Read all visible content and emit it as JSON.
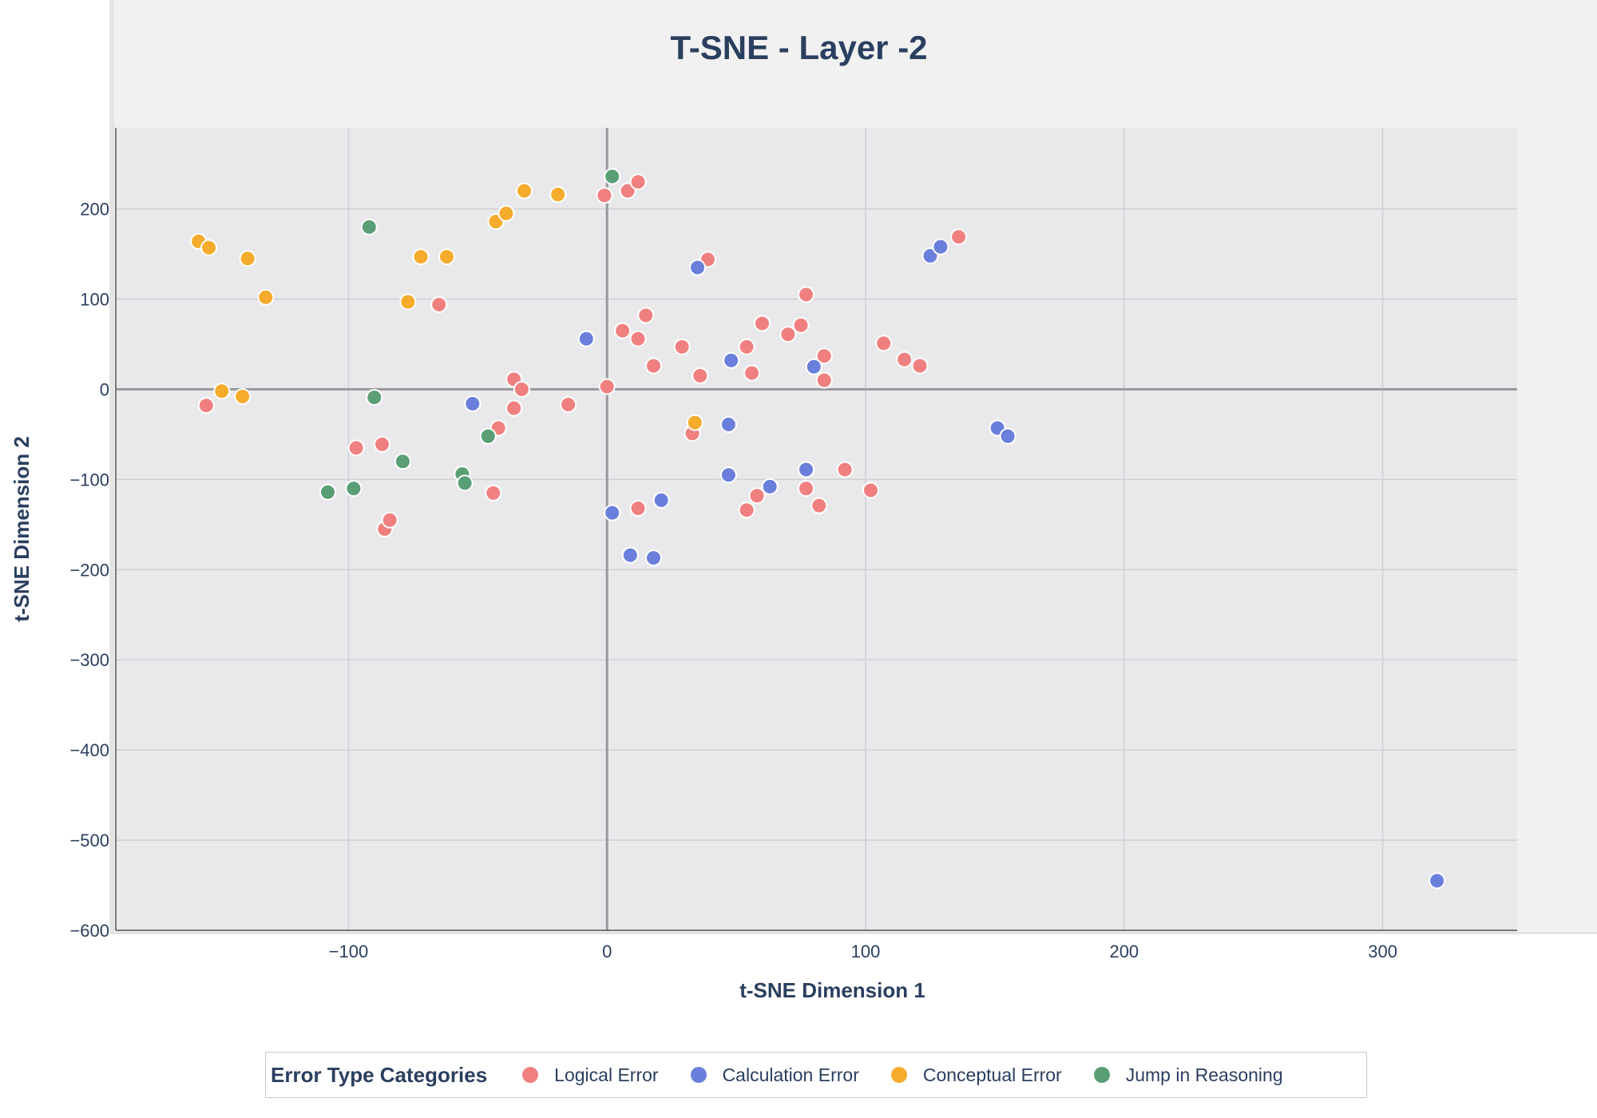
{
  "chart_data": {
    "type": "scatter",
    "title": "T-SNE - Layer -2",
    "xlabel": "t-SNE Dimension 1",
    "ylabel": "t-SNE Dimension 2",
    "xlim": [
      -190,
      352
    ],
    "ylim": [
      -600,
      290
    ],
    "xticks": [
      -100,
      0,
      100,
      200,
      300
    ],
    "yticks": [
      200,
      100,
      0,
      -100,
      -200,
      -300,
      -400,
      -500,
      -600
    ],
    "xtick_labels": [
      "−100",
      "0",
      "100",
      "200",
      "300"
    ],
    "ytick_labels": [
      "200",
      "100",
      "0",
      "−100",
      "−200",
      "−300",
      "−400",
      "−500",
      "−600"
    ],
    "grid": true,
    "legend_position": "bottom",
    "legend_title": "Error Type Categories",
    "series": [
      {
        "name": "Logical Error",
        "color": "#f08080",
        "points": [
          [
            -155,
            -18
          ],
          [
            -97,
            -65
          ],
          [
            -87,
            -61
          ],
          [
            -86,
            -155
          ],
          [
            -84,
            -145
          ],
          [
            -65,
            94
          ],
          [
            -44,
            -115
          ],
          [
            -42,
            -43
          ],
          [
            -36,
            11
          ],
          [
            -36,
            -21
          ],
          [
            -33,
            0
          ],
          [
            -15,
            -17
          ],
          [
            -1,
            215
          ],
          [
            0,
            3
          ],
          [
            8,
            220
          ],
          [
            6,
            65
          ],
          [
            12,
            56
          ],
          [
            15,
            82
          ],
          [
            18,
            26
          ],
          [
            12,
            230
          ],
          [
            29,
            47
          ],
          [
            33,
            -49
          ],
          [
            36,
            15
          ],
          [
            39,
            144
          ],
          [
            54,
            47
          ],
          [
            56,
            18
          ],
          [
            60,
            73
          ],
          [
            70,
            61
          ],
          [
            75,
            71
          ],
          [
            77,
            105
          ],
          [
            84,
            37
          ],
          [
            84,
            10
          ],
          [
            12,
            -132
          ],
          [
            54,
            -134
          ],
          [
            58,
            -118
          ],
          [
            77,
            -110
          ],
          [
            82,
            -129
          ],
          [
            92,
            -89
          ],
          [
            102,
            -112
          ],
          [
            107,
            51
          ],
          [
            115,
            33
          ],
          [
            121,
            26
          ],
          [
            136,
            169
          ]
        ]
      },
      {
        "name": "Calculation Error",
        "color": "#6a7fdb",
        "points": [
          [
            -52,
            -16
          ],
          [
            -8,
            56
          ],
          [
            35,
            135
          ],
          [
            48,
            32
          ],
          [
            47,
            -39
          ],
          [
            47,
            -95
          ],
          [
            63,
            -108
          ],
          [
            77,
            -89
          ],
          [
            80,
            25
          ],
          [
            2,
            -137
          ],
          [
            9,
            -184
          ],
          [
            18,
            -187
          ],
          [
            21,
            -123
          ],
          [
            125,
            148
          ],
          [
            129,
            158
          ],
          [
            151,
            -43
          ],
          [
            155,
            -52
          ],
          [
            321,
            -545
          ]
        ]
      },
      {
        "name": "Conceptual Error",
        "color": "#f5ac2c",
        "points": [
          [
            -158,
            164
          ],
          [
            -154,
            157
          ],
          [
            -139,
            145
          ],
          [
            -132,
            102
          ],
          [
            -149,
            -2
          ],
          [
            -141,
            -8
          ],
          [
            -77,
            97
          ],
          [
            -72,
            147
          ],
          [
            -62,
            147
          ],
          [
            -43,
            186
          ],
          [
            -39,
            195
          ],
          [
            -32,
            220
          ],
          [
            -19,
            216
          ],
          [
            34,
            -37
          ]
        ]
      },
      {
        "name": "Jump in Reasoning",
        "color": "#5a9e76",
        "points": [
          [
            -92,
            180
          ],
          [
            -90,
            -9
          ],
          [
            -79,
            -80
          ],
          [
            -56,
            -94
          ],
          [
            -55,
            -104
          ],
          [
            -46,
            -52
          ],
          [
            -98,
            -110
          ],
          [
            -108,
            -114
          ],
          [
            2,
            236
          ]
        ]
      }
    ]
  }
}
